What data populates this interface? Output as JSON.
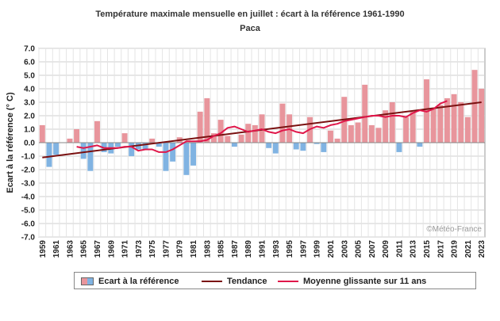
{
  "title": "Température maximale mensuelle en juillet : écart à la référence 1961-1990",
  "subtitle": "Paca",
  "credit": "©Météo-France",
  "chart_data": {
    "type": "bar",
    "ylabel": "Ecart à la référence (° C)",
    "ylim": [
      -7.0,
      7.0
    ],
    "yticks": [
      "7.0",
      "6.0",
      "5.0",
      "4.0",
      "3.0",
      "2.0",
      "1.0",
      "0.0",
      "-1.0",
      "-2.0",
      "-3.0",
      "-4.0",
      "-5.0",
      "-6.0",
      "-7.0"
    ],
    "grid": true,
    "legend_position": "bottom",
    "x": [
      1959,
      1960,
      1961,
      1962,
      1963,
      1964,
      1965,
      1966,
      1967,
      1968,
      1969,
      1970,
      1971,
      1972,
      1973,
      1974,
      1975,
      1976,
      1977,
      1978,
      1979,
      1980,
      1981,
      1982,
      1983,
      1984,
      1985,
      1986,
      1987,
      1988,
      1989,
      1990,
      1991,
      1992,
      1993,
      1994,
      1995,
      1996,
      1997,
      1998,
      1999,
      2000,
      2001,
      2002,
      2003,
      2004,
      2005,
      2006,
      2007,
      2008,
      2009,
      2010,
      2011,
      2012,
      2013,
      2014,
      2015,
      2016,
      2017,
      2018,
      2019,
      2020,
      2021,
      2022,
      2023
    ],
    "xtick_labels": [
      "1959",
      "1961",
      "1963",
      "1965",
      "1967",
      "1969",
      "1971",
      "1973",
      "1975",
      "1977",
      "1979",
      "1981",
      "1983",
      "1985",
      "1987",
      "1989",
      "1991",
      "1993",
      "1995",
      "1997",
      "1999",
      "2001",
      "2003",
      "2005",
      "2007",
      "2009",
      "2011",
      "2013",
      "2015",
      "2017",
      "2019",
      "2021",
      "2023"
    ],
    "series": [
      {
        "name": "Ecart à la référence",
        "kind": "bar",
        "colors": {
          "positive": "#e8959c",
          "negative": "#80b3e2"
        },
        "values": [
          1.3,
          -1.8,
          -0.9,
          0.0,
          0.3,
          1.0,
          -1.2,
          -2.1,
          1.6,
          -0.7,
          -0.8,
          -0.3,
          0.7,
          -1.0,
          -0.5,
          -0.5,
          0.3,
          -0.3,
          -2.1,
          -1.4,
          0.4,
          -2.4,
          -1.7,
          2.3,
          3.3,
          0.7,
          1.7,
          0.5,
          -0.3,
          0.6,
          1.4,
          1.3,
          2.1,
          -0.4,
          -0.8,
          2.9,
          2.1,
          -0.5,
          -0.6,
          1.9,
          -0.1,
          -0.7,
          0.9,
          0.3,
          3.4,
          1.3,
          1.5,
          4.3,
          1.3,
          1.1,
          2.4,
          3.0,
          -0.7,
          1.9,
          2.3,
          -0.3,
          4.7,
          2.6,
          2.8,
          3.3,
          3.6,
          3.0,
          1.9,
          5.4,
          4.0
        ]
      },
      {
        "name": "Tendance",
        "kind": "line",
        "color": "#7a1010",
        "x": [
          1959,
          2023
        ],
        "values": [
          -1.1,
          3.0
        ]
      },
      {
        "name": "Moyenne glissante sur 11 ans",
        "kind": "line",
        "color": "#e0174a",
        "x": [
          1964,
          1965,
          1966,
          1967,
          1968,
          1969,
          1970,
          1971,
          1972,
          1973,
          1974,
          1975,
          1976,
          1977,
          1978,
          1979,
          1980,
          1981,
          1982,
          1983,
          1984,
          1985,
          1986,
          1987,
          1988,
          1989,
          1990,
          1991,
          1992,
          1993,
          1994,
          1995,
          1996,
          1997,
          1998,
          1999,
          2000,
          2001,
          2002,
          2003,
          2004,
          2005,
          2006,
          2007,
          2008,
          2009,
          2010,
          2011,
          2012,
          2013,
          2014,
          2015,
          2016,
          2017,
          2018
        ],
        "values": [
          -0.3,
          -0.4,
          -0.3,
          -0.2,
          -0.4,
          -0.4,
          -0.4,
          -0.3,
          -0.3,
          -0.6,
          -0.5,
          -0.5,
          -0.7,
          -0.7,
          -0.5,
          -0.2,
          0.1,
          0.1,
          0.1,
          0.2,
          0.5,
          0.7,
          1.1,
          1.2,
          1.0,
          0.8,
          0.9,
          1.0,
          0.8,
          0.7,
          0.9,
          1.0,
          0.8,
          0.7,
          1.0,
          1.2,
          1.1,
          1.3,
          1.4,
          1.6,
          1.7,
          1.8,
          1.9,
          2.0,
          2.0,
          1.9,
          2.0,
          2.0,
          1.9,
          2.2,
          2.4,
          2.3,
          2.5,
          2.9,
          3.1
        ]
      }
    ]
  }
}
